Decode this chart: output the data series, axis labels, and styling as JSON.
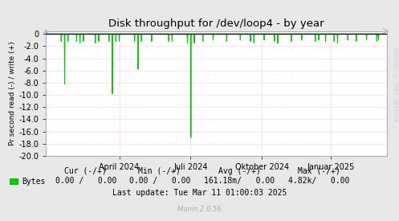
{
  "title": "Disk throughput for /dev/loop4 - by year",
  "ylabel": "Pr second read (-) / write (+)",
  "background_color": "#e8e8e8",
  "plot_bg_color": "#ffffff",
  "grid_color": "#ff9999",
  "grid_style": "dotted",
  "line_color": "#00cc00",
  "zero_line_color": "#000000",
  "ylim": [
    -20.0,
    0.5
  ],
  "xlim": [
    0.0,
    1.0
  ],
  "xticklabels": [
    "April 2024",
    "Juli 2024",
    "Oktober 2024",
    "Januar 2025"
  ],
  "xtick_positions": [
    0.215,
    0.424,
    0.633,
    0.836
  ],
  "legend_label": "Bytes",
  "legend_color": "#00cc00",
  "cur_label": "Cur (-/+)",
  "cur_value": "0.00 /   0.00",
  "min_label": "Min (-/+)",
  "min_value": "0.00 /   0.00",
  "avg_label": "Avg (-/+)",
  "avg_value": "161.18m/   0.00",
  "max_label": "Max (-/+)",
  "max_value": "4.82k/   0.00",
  "last_update": "Last update: Tue Mar 11 01:00:03 2025",
  "munin_version": "Munin 2.0.56",
  "watermark": "RRDTOOL / TOBI OETIKER",
  "spikes": [
    [
      0.045,
      -1.2
    ],
    [
      0.055,
      -8.2
    ],
    [
      0.065,
      -1.2
    ],
    [
      0.09,
      -1.2
    ],
    [
      0.1,
      -1.5
    ],
    [
      0.11,
      -1.2
    ],
    [
      0.145,
      -1.5
    ],
    [
      0.155,
      -1.2
    ],
    [
      0.185,
      -1.2
    ],
    [
      0.195,
      -9.8
    ],
    [
      0.205,
      -1.2
    ],
    [
      0.215,
      -1.2
    ],
    [
      0.26,
      -1.2
    ],
    [
      0.27,
      -5.8
    ],
    [
      0.28,
      -1.2
    ],
    [
      0.31,
      -1.2
    ],
    [
      0.36,
      -1.2
    ],
    [
      0.37,
      -1.2
    ],
    [
      0.415,
      -1.5
    ],
    [
      0.425,
      -17.0
    ],
    [
      0.435,
      -1.5
    ],
    [
      0.46,
      -1.2
    ],
    [
      0.49,
      -1.0
    ],
    [
      0.53,
      -1.2
    ],
    [
      0.57,
      -1.0
    ],
    [
      0.6,
      -1.2
    ],
    [
      0.61,
      -1.5
    ],
    [
      0.64,
      -1.0
    ],
    [
      0.67,
      -1.2
    ],
    [
      0.68,
      -1.5
    ],
    [
      0.72,
      -1.2
    ],
    [
      0.75,
      -1.0
    ],
    [
      0.79,
      -1.2
    ],
    [
      0.8,
      -1.0
    ],
    [
      0.82,
      -1.2
    ],
    [
      0.845,
      -1.2
    ],
    [
      0.855,
      -1.5
    ],
    [
      0.885,
      -1.0
    ],
    [
      0.91,
      -1.2
    ],
    [
      0.94,
      -1.0
    ],
    [
      0.97,
      -1.2
    ],
    [
      0.975,
      -1.0
    ]
  ]
}
